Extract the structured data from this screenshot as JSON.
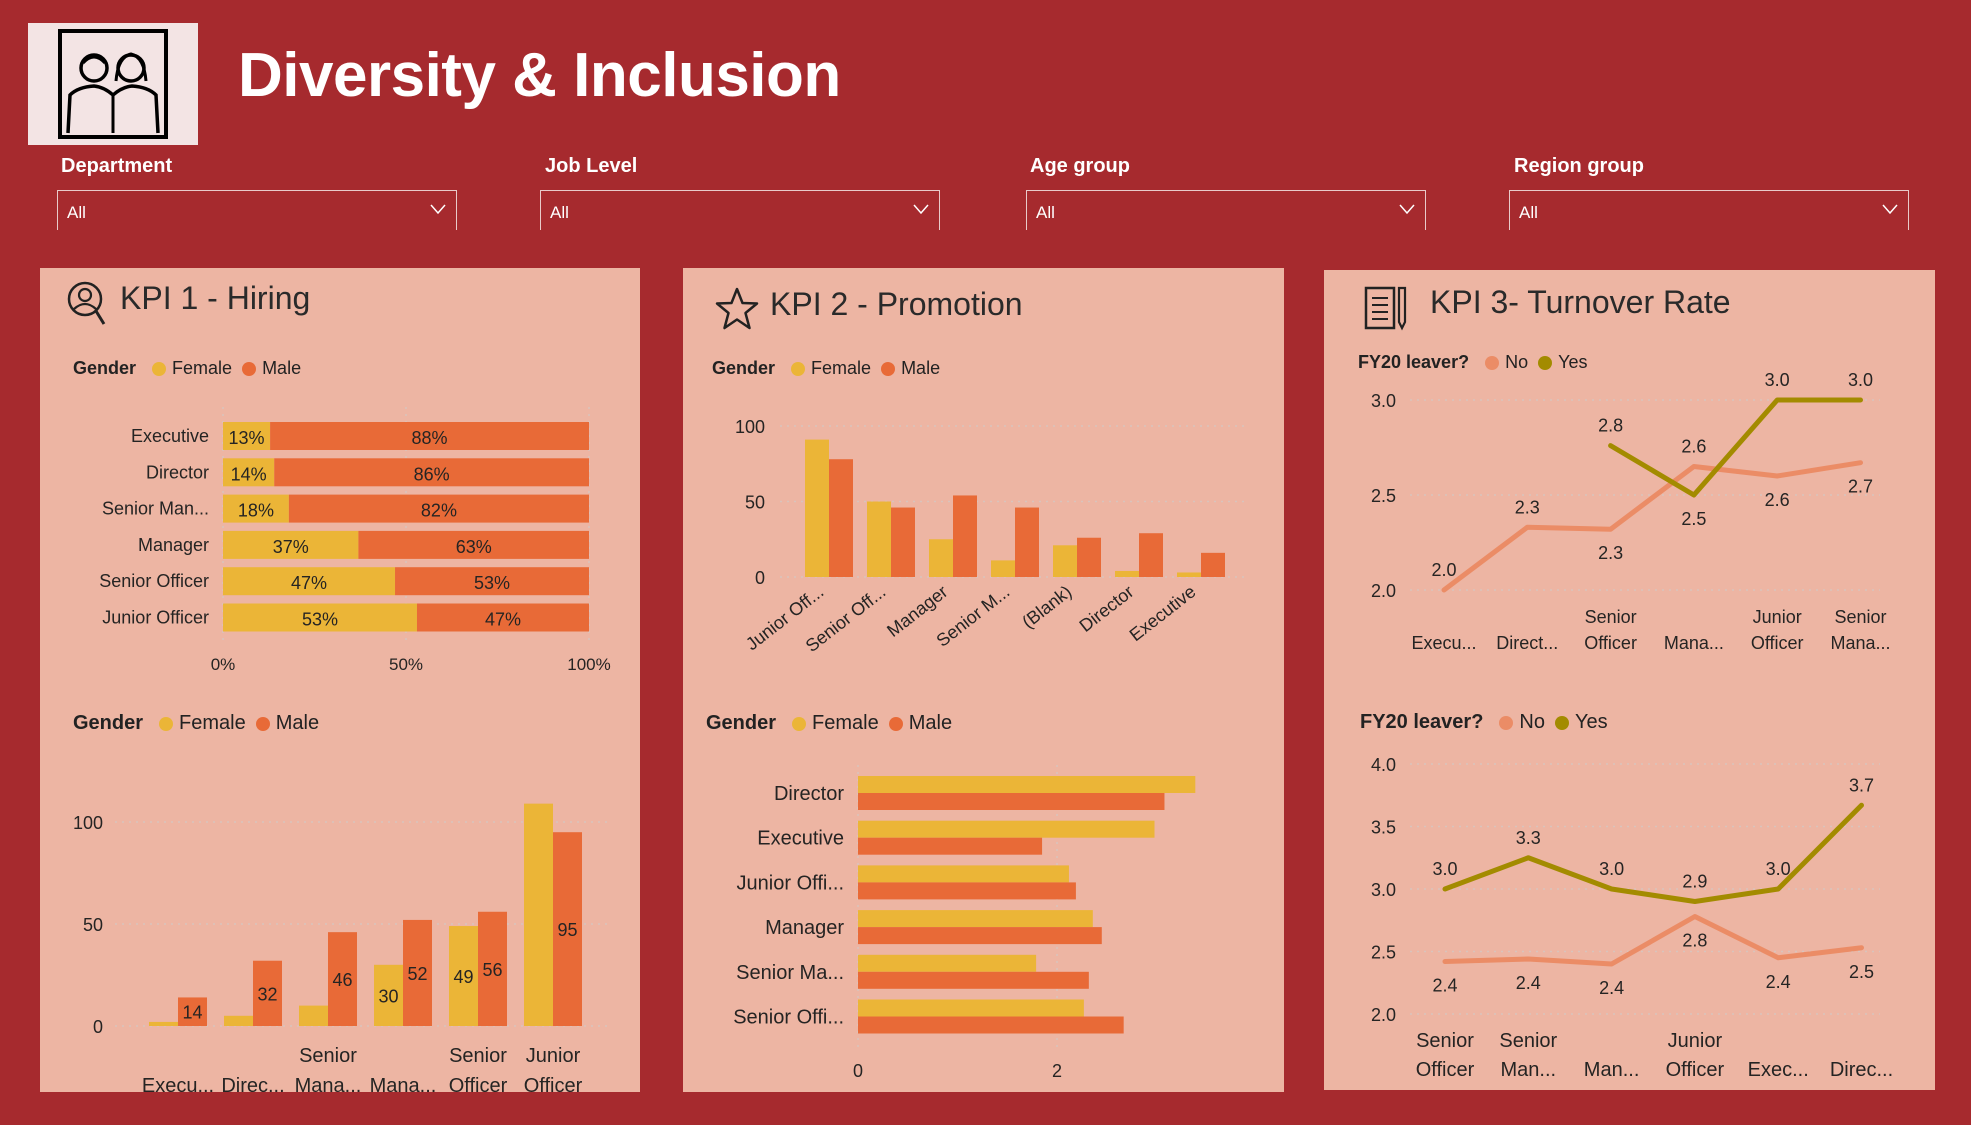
{
  "header": {
    "title": "Diversity & Inclusion",
    "logo_icon": "diversity-people-icon"
  },
  "filters": [
    {
      "label": "Department",
      "value": "All"
    },
    {
      "label": "Job Level",
      "value": "All"
    },
    {
      "label": "Age group",
      "value": "All"
    },
    {
      "label": "Region group",
      "value": "All"
    }
  ],
  "colors": {
    "background": "#A62A2E",
    "panel": "#EDB5A3",
    "female": "#EBB537",
    "male": "#E86A37",
    "no": "#EB8C66",
    "yes": "#A38B00"
  },
  "kpi1": {
    "title": "KPI 1 - Hiring",
    "icon": "person-search-icon"
  },
  "kpi2": {
    "title": "KPI 2 - Promotion",
    "icon": "star-icon"
  },
  "kpi3": {
    "title": "KPI 3- Turnover Rate",
    "icon": "document-pen-icon"
  },
  "legends": {
    "gender": {
      "title": "Gender",
      "female": "Female",
      "male": "Male"
    },
    "leaver": {
      "title": "FY20 leaver?",
      "no": "No",
      "yes": "Yes"
    }
  },
  "chart_data": [
    {
      "type": "bar",
      "orientation": "horizontal",
      "stacked": "100%",
      "legend_title": "Gender",
      "legend_placement": "top-left",
      "categories": [
        "Executive",
        "Director",
        "Senior Man...",
        "Manager",
        "Senior Officer",
        "Junior Officer"
      ],
      "series": [
        {
          "name": "Female",
          "values": [
            13,
            14,
            18,
            37,
            47,
            53
          ],
          "labels": [
            "13%",
            "14%",
            "18%",
            "37%",
            "47%",
            "53%"
          ]
        },
        {
          "name": "Male",
          "values": [
            88,
            86,
            82,
            63,
            53,
            47
          ],
          "labels": [
            "88%",
            "86%",
            "82%",
            "63%",
            "53%",
            "47%"
          ]
        }
      ],
      "xticks": [
        "0%",
        "50%",
        "100%"
      ],
      "xlim": [
        0,
        100
      ],
      "grid": true
    },
    {
      "type": "bar",
      "orientation": "vertical",
      "legend_title": "Gender",
      "legend_placement": "top-left",
      "categories": [
        "Execu...",
        "Direc...",
        "Senior Mana...",
        "Mana...",
        "Senior Officer",
        "Junior Officer"
      ],
      "series": [
        {
          "name": "Female",
          "values": [
            2,
            5,
            10,
            30,
            49,
            109
          ],
          "labels": [
            "",
            "",
            "",
            "30",
            "49",
            ""
          ]
        },
        {
          "name": "Male",
          "values": [
            14,
            32,
            46,
            52,
            56,
            95
          ],
          "labels": [
            "14",
            "32",
            "46",
            "52",
            "56",
            "95"
          ]
        }
      ],
      "yticks": [
        "0",
        "50",
        "100"
      ],
      "ylim": [
        0,
        115
      ],
      "grid": true
    },
    {
      "type": "bar",
      "orientation": "vertical",
      "legend_title": "Gender",
      "legend_placement": "top-left",
      "categories": [
        "Junior Off...",
        "Senior Off...",
        "Manager",
        "Senior M...",
        "(Blank)",
        "Director",
        "Executive"
      ],
      "series": [
        {
          "name": "Female",
          "values": [
            91,
            50,
            25,
            11,
            21,
            4,
            3
          ]
        },
        {
          "name": "Male",
          "values": [
            78,
            46,
            54,
            46,
            26,
            29,
            16
          ]
        }
      ],
      "yticks": [
        "0",
        "50",
        "100"
      ],
      "ylim": [
        0,
        100
      ],
      "grid": true
    },
    {
      "type": "bar",
      "orientation": "horizontal",
      "legend_title": "Gender",
      "legend_placement": "top-left",
      "categories": [
        "Director",
        "Executive",
        "Junior Offi...",
        "Manager",
        "Senior Ma...",
        "Senior Offi..."
      ],
      "series": [
        {
          "name": "Female",
          "values": [
            3.39,
            2.98,
            2.12,
            2.36,
            1.79,
            2.27
          ]
        },
        {
          "name": "Male",
          "values": [
            3.08,
            1.85,
            2.19,
            2.45,
            2.32,
            2.67
          ]
        }
      ],
      "xticks": [
        "0",
        "2"
      ],
      "xlim": [
        0,
        3.5
      ],
      "grid": true
    },
    {
      "type": "line",
      "legend_title": "FY20 leaver?",
      "legend_placement": "top-left",
      "categories": [
        "Execu...",
        "Direct...",
        "Senior Officer",
        "Mana...",
        "Junior Officer",
        "Senior Mana..."
      ],
      "series": [
        {
          "name": "No",
          "values": [
            2.0,
            2.33,
            2.32,
            2.65,
            2.6,
            2.67
          ],
          "labels": [
            "2.0",
            "2.3",
            "2.3",
            "2.6",
            "2.6",
            "2.7"
          ]
        },
        {
          "name": "Yes",
          "values": [
            null,
            null,
            2.76,
            2.5,
            3.0,
            3.0
          ],
          "labels": [
            "",
            "",
            "2.8",
            "2.5",
            "3.0",
            "3.0"
          ]
        }
      ],
      "yticks": [
        "2.0",
        "2.5",
        "3.0"
      ],
      "ylim": [
        2.0,
        3.0
      ],
      "grid": true
    },
    {
      "type": "line",
      "legend_title": "FY20 leaver?",
      "legend_placement": "top-left",
      "categories": [
        "Senior Officer",
        "Senior Man...",
        "Man...",
        "Junior Officer",
        "Exec...",
        "Direc..."
      ],
      "series": [
        {
          "name": "No",
          "values": [
            2.42,
            2.44,
            2.4,
            2.78,
            2.45,
            2.53
          ],
          "labels": [
            "2.4",
            "2.4",
            "2.4",
            "2.8",
            "2.4",
            "2.5"
          ]
        },
        {
          "name": "Yes",
          "values": [
            3.0,
            3.25,
            3.0,
            2.9,
            3.0,
            3.67
          ],
          "labels": [
            "3.0",
            "3.3",
            "3.0",
            "2.9",
            "3.0",
            "3.7"
          ]
        }
      ],
      "yticks": [
        "2.0",
        "2.5",
        "3.0",
        "3.5",
        "4.0"
      ],
      "ylim": [
        2.0,
        4.0
      ],
      "grid": true
    }
  ]
}
